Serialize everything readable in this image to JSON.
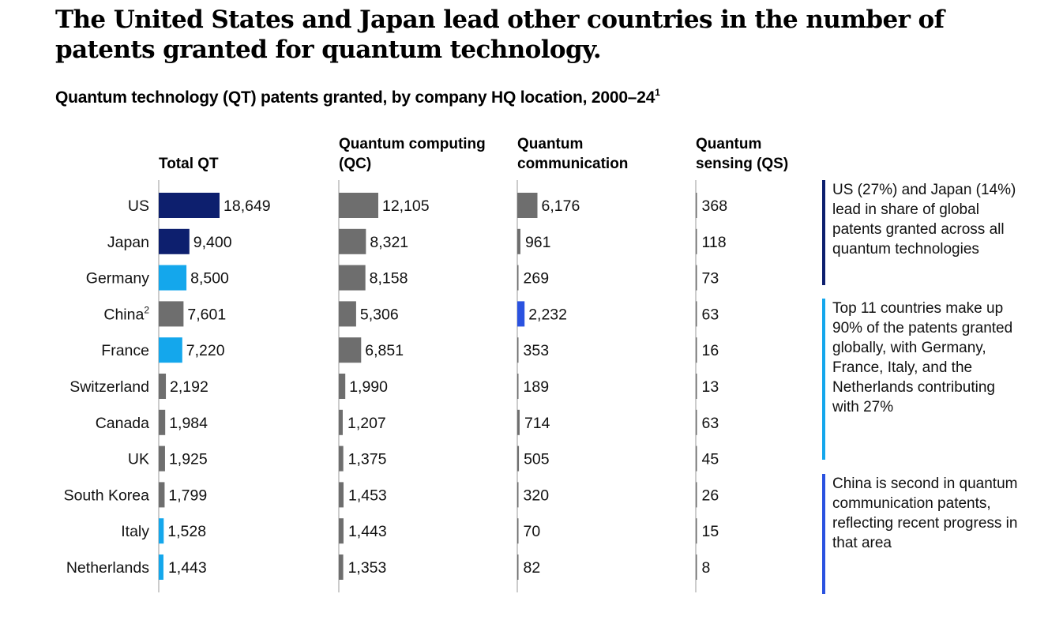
{
  "title": "The United States and Japan lead other countries in the number of patents granted for quantum technology.",
  "subtitle": "Quantum technology (QT) patents granted, by company HQ location, 2000–24",
  "subtitle_footnote": "1",
  "colors": {
    "dark_navy": "#0d1f6e",
    "light_blue": "#14a7ec",
    "royal_blue": "#2a52e0",
    "gray": "#6e6e6e"
  },
  "notes": [
    {
      "text": "US (27%) and Japan (14%) lead in share of global patents granted across all quantum technologies",
      "color": "#0d1f6e"
    },
    {
      "text": "Top 11 countries make up 90% of the patents granted globally, with Germany, France, Italy, and the Netherlands contributing with 27%",
      "color": "#14a7ec"
    },
    {
      "text": "China is second in quantum communication patents, reflecting recent progress in that area",
      "color": "#2a52e0"
    }
  ],
  "chart_data": {
    "type": "bar",
    "orientation": "horizontal",
    "categories": [
      "US",
      "Japan",
      "Germany",
      "China",
      "France",
      "Switzerland",
      "Canada",
      "UK",
      "South Korea",
      "Italy",
      "Netherlands"
    ],
    "category_footnotes": {
      "China": "2"
    },
    "series": [
      {
        "name": "Total QT",
        "values": [
          18649,
          9400,
          8500,
          7601,
          7220,
          2192,
          1984,
          1925,
          1799,
          1528,
          1443
        ],
        "value_labels": [
          "18,649",
          "9,400",
          "8,500",
          "7,601",
          "7,220",
          "2,192",
          "1,984",
          "1,925",
          "1,799",
          "1,528",
          "1,443"
        ],
        "colors": [
          "#0d1f6e",
          "#0d1f6e",
          "#14a7ec",
          "#6e6e6e",
          "#14a7ec",
          "#6e6e6e",
          "#6e6e6e",
          "#6e6e6e",
          "#6e6e6e",
          "#14a7ec",
          "#14a7ec"
        ]
      },
      {
        "name": "Quantum computing (QC)",
        "values": [
          12105,
          8321,
          8158,
          5306,
          6851,
          1990,
          1207,
          1375,
          1453,
          1443,
          1353
        ],
        "value_labels": [
          "12,105",
          "8,321",
          "8,158",
          "5,306",
          "6,851",
          "1,990",
          "1,207",
          "1,375",
          "1,453",
          "1,443",
          "1,353"
        ],
        "colors": [
          "#6e6e6e",
          "#6e6e6e",
          "#6e6e6e",
          "#6e6e6e",
          "#6e6e6e",
          "#6e6e6e",
          "#6e6e6e",
          "#6e6e6e",
          "#6e6e6e",
          "#6e6e6e",
          "#6e6e6e"
        ]
      },
      {
        "name": "Quantum communication",
        "values": [
          6176,
          961,
          269,
          2232,
          353,
          189,
          714,
          505,
          320,
          70,
          82
        ],
        "value_labels": [
          "6,176",
          "961",
          "269",
          "2,232",
          "353",
          "189",
          "714",
          "505",
          "320",
          "70",
          "82"
        ],
        "colors": [
          "#6e6e6e",
          "#6e6e6e",
          "#6e6e6e",
          "#2a52e0",
          "#6e6e6e",
          "#6e6e6e",
          "#6e6e6e",
          "#6e6e6e",
          "#6e6e6e",
          "#6e6e6e",
          "#6e6e6e"
        ]
      },
      {
        "name": "Quantum sensing (QS)",
        "values": [
          368,
          118,
          73,
          63,
          16,
          13,
          63,
          45,
          26,
          15,
          8
        ],
        "value_labels": [
          "368",
          "118",
          "73",
          "63",
          "16",
          "13",
          "63",
          "45",
          "26",
          "15",
          "8"
        ],
        "colors": [
          "#6e6e6e",
          "#6e6e6e",
          "#6e6e6e",
          "#6e6e6e",
          "#6e6e6e",
          "#6e6e6e",
          "#6e6e6e",
          "#6e6e6e",
          "#6e6e6e",
          "#6e6e6e",
          "#6e6e6e"
        ]
      }
    ],
    "column_headers": [
      "Total QT",
      "Quantum computing (QC)",
      "Quantum communication",
      "Quantum sensing (QS)"
    ]
  }
}
